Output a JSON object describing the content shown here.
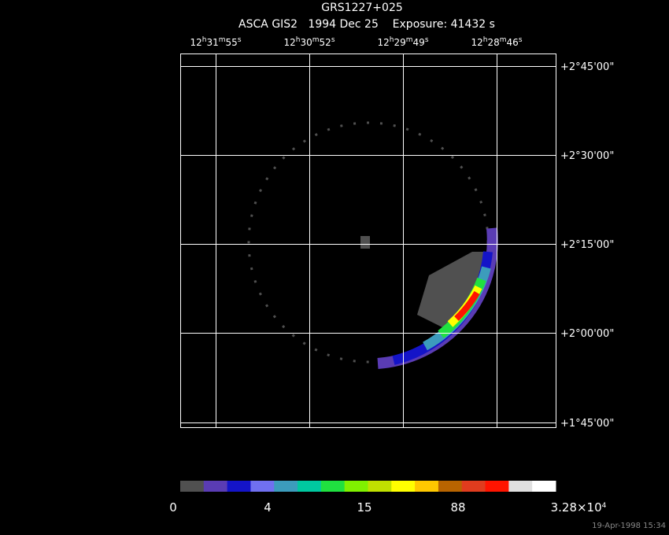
{
  "header": {
    "title": "GRS1227+025",
    "subtitle": "ASCA GIS2   1994 Dec 25    Exposure: 41432 s"
  },
  "ra_labels": [
    [
      "12",
      "h",
      "31",
      "m",
      "55",
      "s"
    ],
    [
      "12",
      "h",
      "30",
      "m",
      "52",
      "s"
    ],
    [
      "12",
      "h",
      "29",
      "m",
      "49",
      "s"
    ],
    [
      "12",
      "h",
      "28",
      "m",
      "46",
      "s"
    ]
  ],
  "dec_labels": [
    "+2°45'00\"",
    "+2°30'00\"",
    "+2°15'00\"",
    "+2°00'00\"",
    "+1°45'00\""
  ],
  "colorbar": {
    "colors": [
      "#505050",
      "#5a3cb4",
      "#1414c8",
      "#7070f0",
      "#3c9cbc",
      "#00c8a0",
      "#20e040",
      "#80f000",
      "#c0e000",
      "#ffff00",
      "#ffc800",
      "#b86400",
      "#e03c1e",
      "#ff1400",
      "#e0e0e0",
      "#ffffff"
    ],
    "labels": [
      [
        "0"
      ],
      [
        "4"
      ],
      [
        "15"
      ],
      [
        "88"
      ],
      [
        "3.28×10",
        "4"
      ]
    ]
  },
  "timestamp": "19-Apr-1998 15:34"
}
